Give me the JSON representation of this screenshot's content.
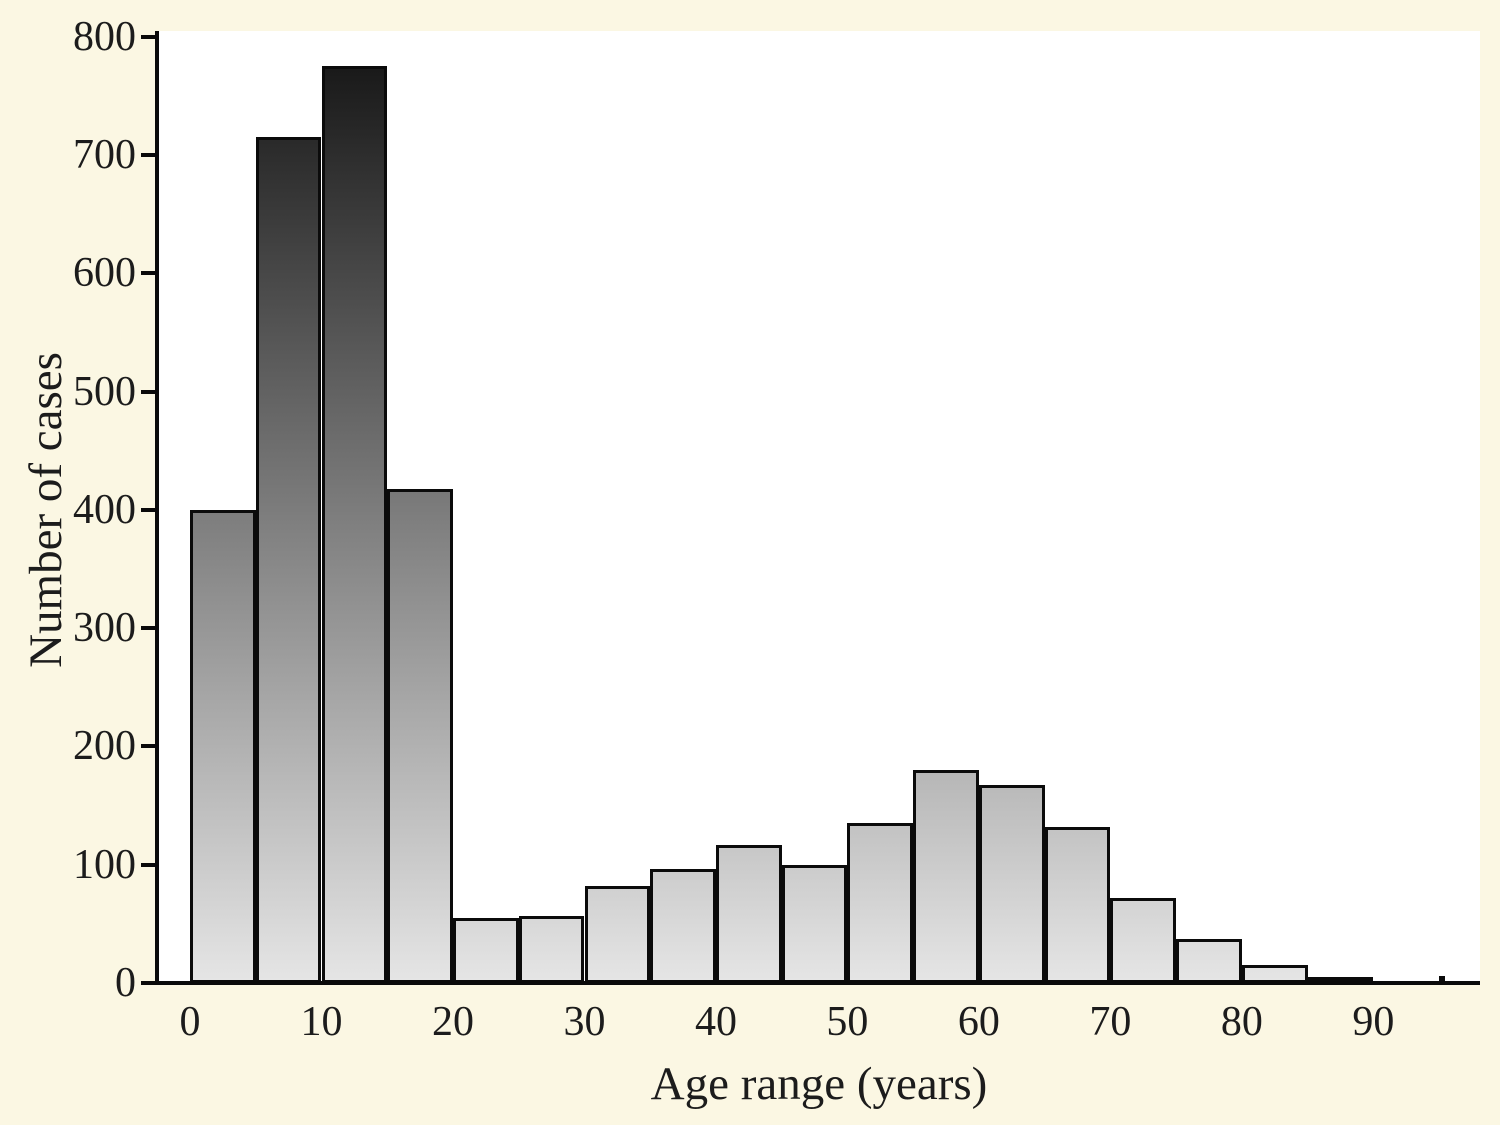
{
  "figure": {
    "background_color": "#fbf7e3",
    "plot_background_color": "#ffffff",
    "axis_color": "#0a0a0a",
    "text_color": "#1c1c1c",
    "bar_border_color": "#0b0b0b",
    "bar_gradient_top": "#121212",
    "bar_gradient_bottom": "#e5e5e5"
  },
  "chart_data": {
    "type": "bar",
    "subtype": "histogram",
    "title": "",
    "xlabel": "Age range (years)",
    "ylabel": "Number of cases",
    "x_ticks": [
      0,
      10,
      20,
      30,
      40,
      50,
      60,
      70,
      80,
      90
    ],
    "y_ticks": [
      0,
      100,
      200,
      300,
      400,
      500,
      600,
      700,
      800
    ],
    "xlim": [
      -2.4,
      98
    ],
    "ylim": [
      0,
      800
    ],
    "grid": false,
    "legend": false,
    "bin_width_years": 5,
    "bins": [
      {
        "start": 0,
        "end": 5,
        "value": 400
      },
      {
        "start": 5,
        "end": 10,
        "value": 715
      },
      {
        "start": 10,
        "end": 15,
        "value": 775
      },
      {
        "start": 15,
        "end": 20,
        "value": 418
      },
      {
        "start": 20,
        "end": 25,
        "value": 55
      },
      {
        "start": 25,
        "end": 30,
        "value": 57
      },
      {
        "start": 30,
        "end": 35,
        "value": 82
      },
      {
        "start": 35,
        "end": 40,
        "value": 96
      },
      {
        "start": 40,
        "end": 45,
        "value": 117
      },
      {
        "start": 45,
        "end": 50,
        "value": 100
      },
      {
        "start": 50,
        "end": 55,
        "value": 135
      },
      {
        "start": 55,
        "end": 60,
        "value": 180
      },
      {
        "start": 60,
        "end": 65,
        "value": 167
      },
      {
        "start": 65,
        "end": 70,
        "value": 132
      },
      {
        "start": 70,
        "end": 75,
        "value": 72
      },
      {
        "start": 75,
        "end": 80,
        "value": 37
      },
      {
        "start": 80,
        "end": 85,
        "value": 15
      },
      {
        "start": 85,
        "end": 90,
        "value": 5
      },
      {
        "start": 90,
        "end": 95,
        "value": 0
      },
      {
        "start": 95,
        "end": 95.4,
        "value": 6
      }
    ]
  }
}
